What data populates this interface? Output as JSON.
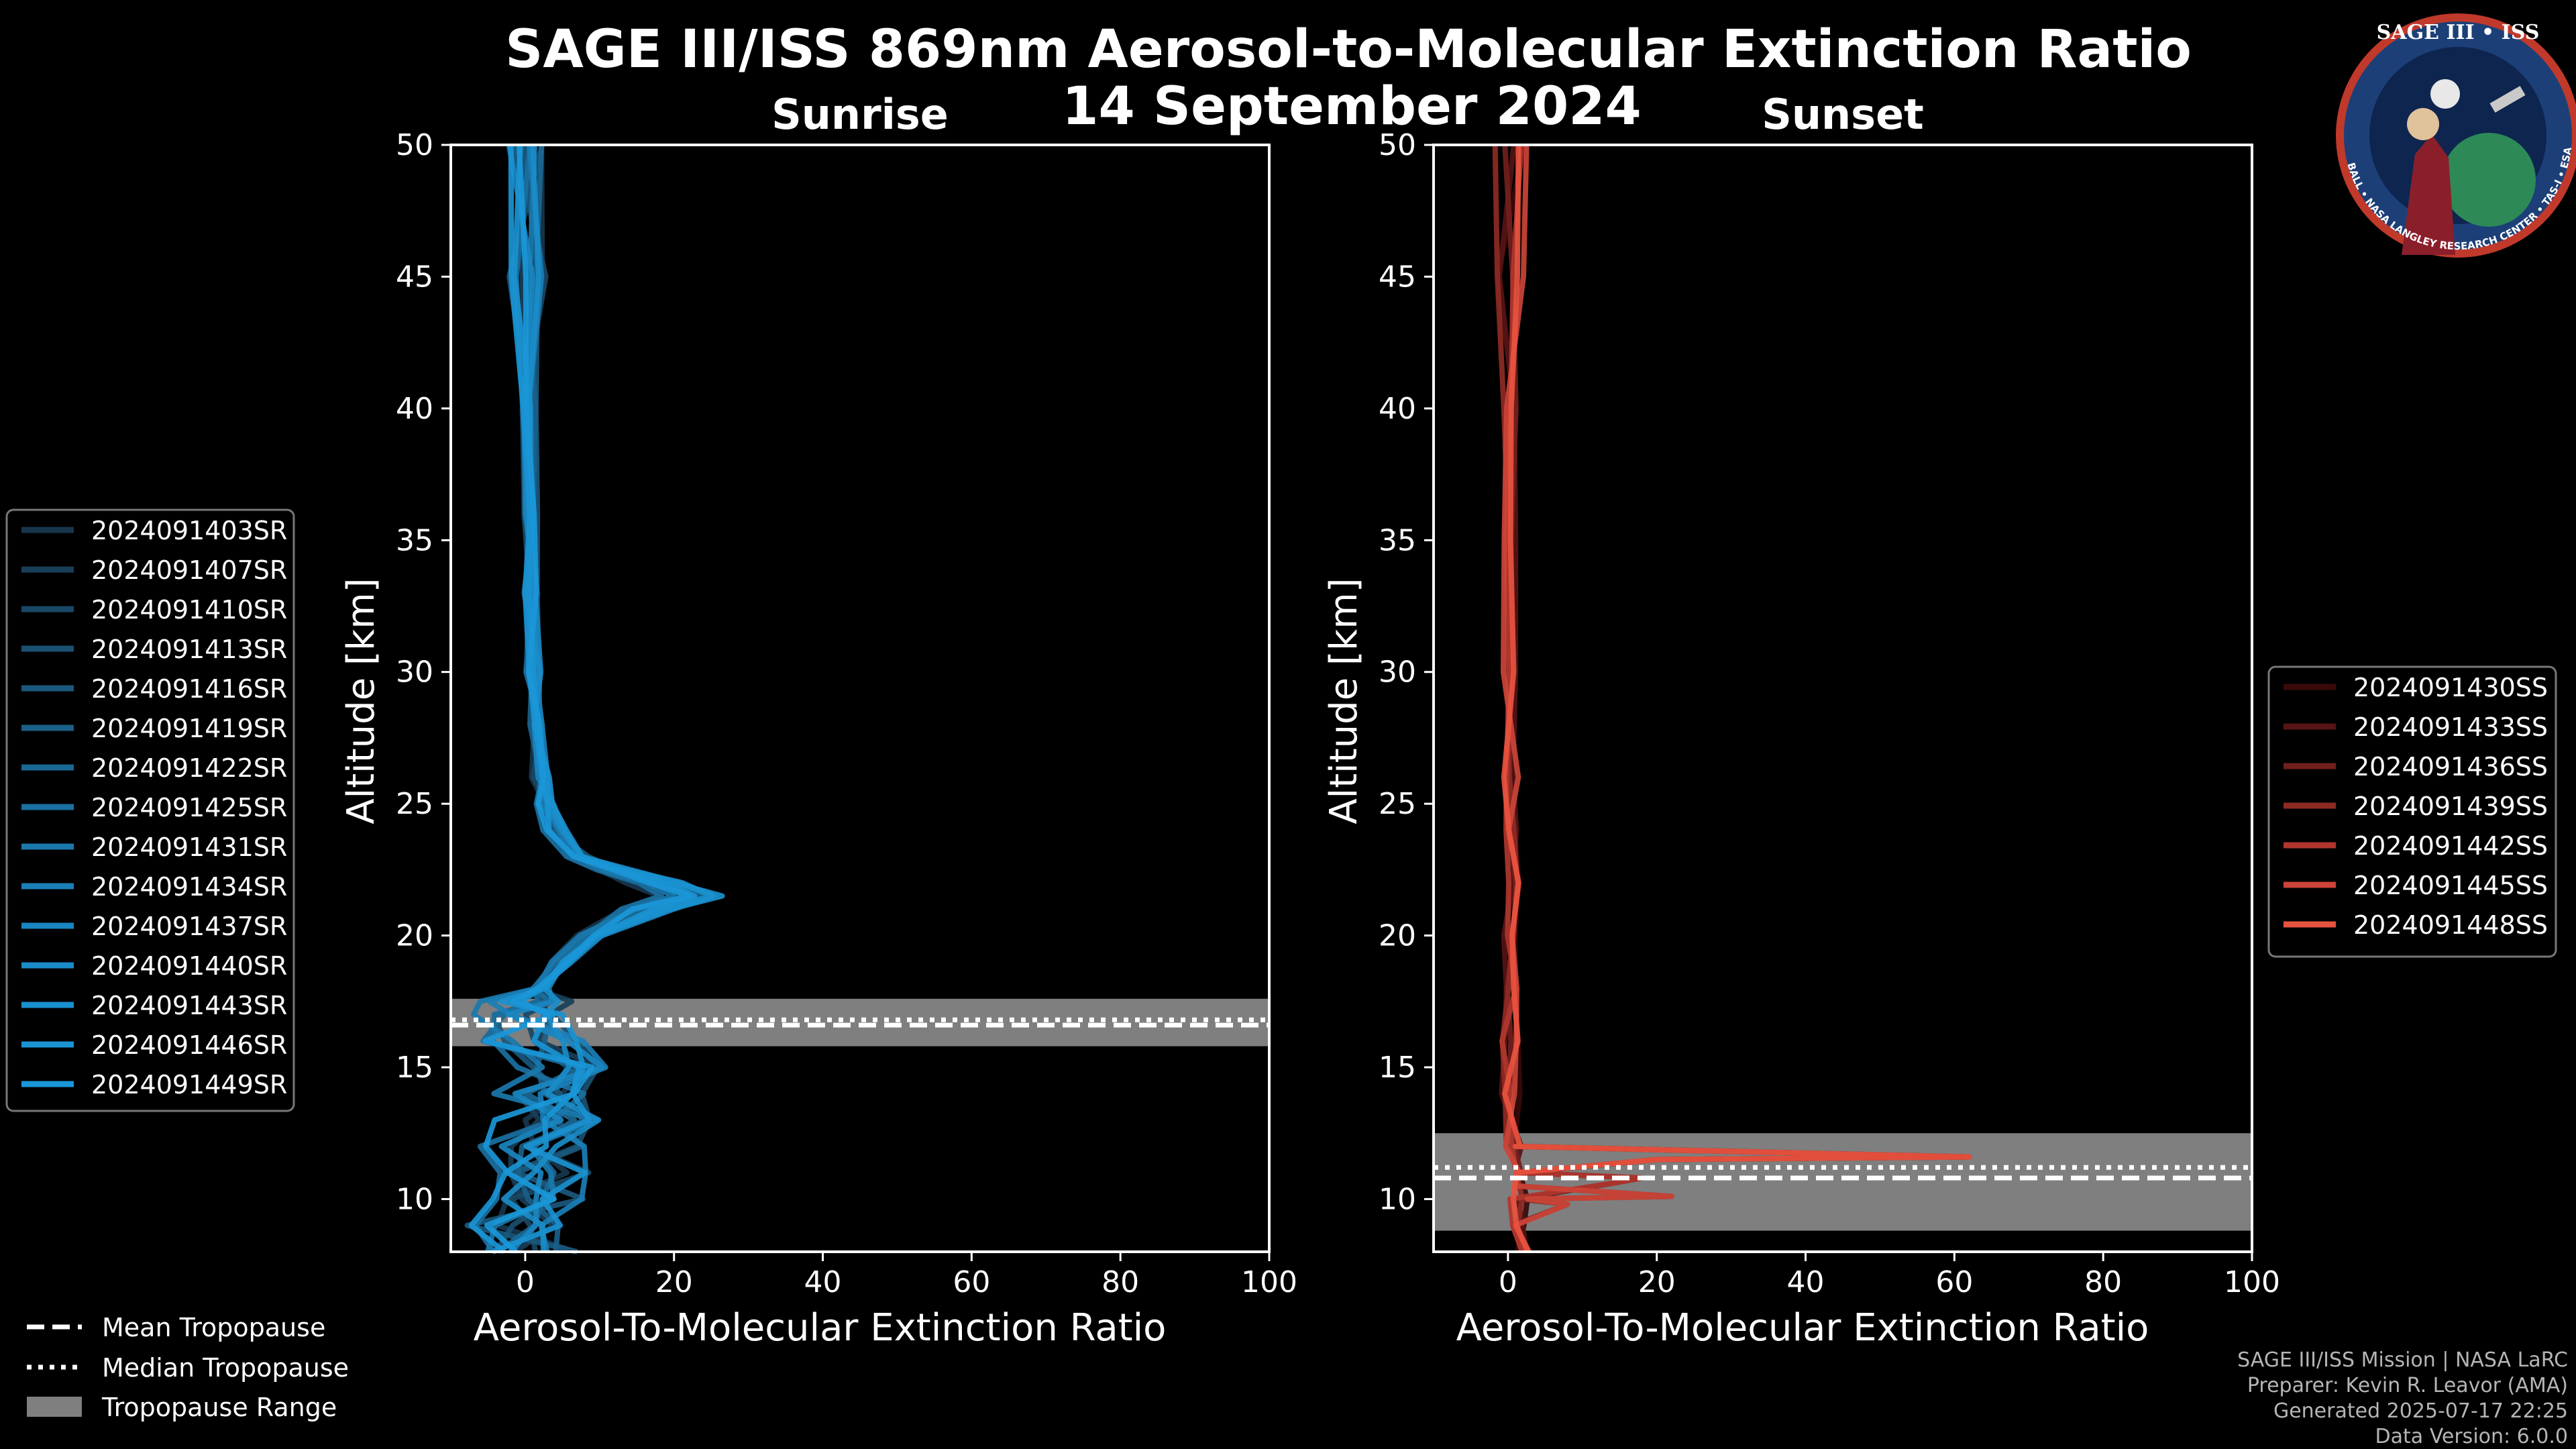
{
  "figure": {
    "title_line1": "SAGE III/ISS 869nm Aerosol-to-Molecular Extinction Ratio",
    "title_line2": "14 September 2024"
  },
  "logo": {
    "text": "SAGE III • ISS",
    "ring_text": "BALL • NASA LANGLEY RESEARCH CENTER • TAS-I • ESA"
  },
  "credits": [
    "SAGE III/ISS Mission | NASA LaRC",
    "Preparer: Kevin R. Leavor (AMA)",
    "Generated 2025-07-17 22:25",
    "Data Version: 6.0.0"
  ],
  "tropo_legend": [
    "Mean Tropopause",
    "Median Tropopause",
    "Tropopause Range"
  ],
  "colors": {
    "background": "#000000",
    "sunrise": "#1a94d4",
    "sunset": "#e8533f",
    "tropo_range": "#7f7f7f"
  },
  "chart_data": [
    {
      "type": "line",
      "title": "Sunrise",
      "xlabel": "Aerosol-To-Molecular Extinction Ratio",
      "ylabel": "Altitude [km]",
      "xlim": [
        -10,
        100
      ],
      "ylim": [
        8,
        50
      ],
      "xticks": [
        0,
        20,
        40,
        60,
        80,
        100
      ],
      "yticks": [
        10,
        15,
        20,
        25,
        30,
        35,
        40,
        45,
        50
      ],
      "tropopause": {
        "mean": 16.6,
        "median": 16.8,
        "range": [
          15.8,
          17.6
        ]
      },
      "legend_position": "left",
      "series_names": [
        "2024091403SR",
        "2024091407SR",
        "2024091410SR",
        "2024091413SR",
        "2024091416SR",
        "2024091419SR",
        "2024091422SR",
        "2024091425SR",
        "2024091431SR",
        "2024091434SR",
        "2024091437SR",
        "2024091440SR",
        "2024091443SR",
        "2024091446SR",
        "2024091449SR"
      ],
      "series_colors": [
        "#17364d",
        "#183f59",
        "#194865",
        "#1a5071",
        "#1a587d",
        "#1a6089",
        "#1a6895",
        "#1a70a1",
        "#1a78ad",
        "#1a7fb7",
        "#1a86c0",
        "#1a8cc8",
        "#1a91cf",
        "#1a94d4",
        "#1a97d8"
      ],
      "base_profile": [
        [
          8,
          1
        ],
        [
          9,
          -1
        ],
        [
          10,
          2
        ],
        [
          11,
          3
        ],
        [
          12,
          1
        ],
        [
          13,
          3
        ],
        [
          14,
          2
        ],
        [
          15,
          4
        ],
        [
          16,
          1
        ],
        [
          17,
          0
        ],
        [
          17.5,
          1
        ],
        [
          18,
          2
        ],
        [
          19,
          5
        ],
        [
          20,
          9
        ],
        [
          21,
          16
        ],
        [
          21.5,
          22
        ],
        [
          22,
          18
        ],
        [
          22.5,
          12
        ],
        [
          23,
          7
        ],
        [
          24,
          4
        ],
        [
          25,
          2.5
        ],
        [
          26,
          2
        ],
        [
          28,
          1.5
        ],
        [
          30,
          1
        ],
        [
          33,
          0.8
        ],
        [
          36,
          0.6
        ],
        [
          40,
          0.5
        ],
        [
          45,
          0.3
        ],
        [
          50,
          0.2
        ]
      ]
    },
    {
      "type": "line",
      "title": "Sunset",
      "xlabel": "Aerosol-To-Molecular Extinction Ratio",
      "ylabel": "Altitude [km]",
      "xlim": [
        -10,
        100
      ],
      "ylim": [
        8,
        50
      ],
      "xticks": [
        0,
        20,
        40,
        60,
        80,
        100
      ],
      "yticks": [
        10,
        15,
        20,
        25,
        30,
        35,
        40,
        45,
        50
      ],
      "tropopause": {
        "mean": 10.8,
        "median": 11.2,
        "range": [
          8.8,
          12.5
        ]
      },
      "legend_position": "right",
      "series_names": [
        "2024091430SS",
        "2024091433SS",
        "2024091436SS",
        "2024091439SS",
        "2024091442SS",
        "2024091445SS",
        "2024091448SS"
      ],
      "series_colors": [
        "#3a0a0a",
        "#561414",
        "#72201c",
        "#8e2a24",
        "#b0362e",
        "#cc4438",
        "#e8533f"
      ],
      "base_profile": [
        [
          8,
          2
        ],
        [
          9,
          1
        ],
        [
          10,
          1.5
        ],
        [
          11,
          1
        ],
        [
          12,
          0.8
        ],
        [
          14,
          0.5
        ],
        [
          16,
          0.4
        ],
        [
          18,
          0.4
        ],
        [
          20,
          0.4
        ],
        [
          22,
          0.5
        ],
        [
          24,
          0.5
        ],
        [
          26,
          0.4
        ],
        [
          30,
          0.3
        ],
        [
          35,
          0.3
        ],
        [
          40,
          0.2
        ],
        [
          45,
          0.3
        ],
        [
          50,
          0.5
        ]
      ]
    }
  ]
}
